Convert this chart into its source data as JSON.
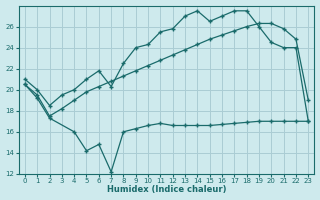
{
  "xlabel": "Humidex (Indice chaleur)",
  "background_color": "#ceeaed",
  "grid_color": "#aacdd4",
  "line_color": "#1a6b6b",
  "xlim": [
    -0.5,
    23.5
  ],
  "ylim": [
    12,
    28
  ],
  "yticks": [
    12,
    14,
    16,
    18,
    20,
    22,
    24,
    26
  ],
  "xticks": [
    0,
    1,
    2,
    3,
    4,
    5,
    6,
    7,
    8,
    9,
    10,
    11,
    12,
    13,
    14,
    15,
    16,
    17,
    18,
    19,
    20,
    21,
    22,
    23
  ],
  "series1_x": [
    0,
    1,
    2,
    3,
    4,
    5,
    6,
    7,
    8,
    9,
    10,
    11,
    12,
    13,
    14,
    15,
    16,
    17,
    18,
    19,
    20,
    21,
    22,
    23
  ],
  "series1_y": [
    20.5,
    19.5,
    17.5,
    18.2,
    19.0,
    19.8,
    20.3,
    20.8,
    21.3,
    21.8,
    22.3,
    22.8,
    23.3,
    23.8,
    24.3,
    24.8,
    25.2,
    25.6,
    26.0,
    26.3,
    26.3,
    25.8,
    24.8,
    19.0
  ],
  "series2_x": [
    0,
    1,
    2,
    3,
    4,
    5,
    6,
    7,
    8,
    9,
    10,
    11,
    12,
    13,
    14,
    15,
    16,
    17,
    18,
    19,
    20,
    21,
    22,
    23
  ],
  "series2_y": [
    21.0,
    20.0,
    18.5,
    19.5,
    20.0,
    21.0,
    21.8,
    20.3,
    22.5,
    24.0,
    24.3,
    25.5,
    25.8,
    27.0,
    27.5,
    26.5,
    27.0,
    27.5,
    27.5,
    26.0,
    24.5,
    24.0,
    24.0,
    17.0
  ],
  "series3_x": [
    0,
    1,
    2,
    4,
    5,
    6,
    7,
    8,
    9,
    10,
    11,
    12,
    13,
    14,
    15,
    16,
    17,
    18,
    19,
    20,
    21,
    22,
    23
  ],
  "series3_y": [
    20.5,
    19.2,
    17.3,
    16.0,
    14.2,
    14.8,
    12.2,
    16.0,
    16.3,
    16.6,
    16.8,
    16.6,
    16.6,
    16.6,
    16.6,
    16.7,
    16.8,
    16.9,
    17.0,
    17.0,
    17.0,
    17.0,
    17.0
  ]
}
